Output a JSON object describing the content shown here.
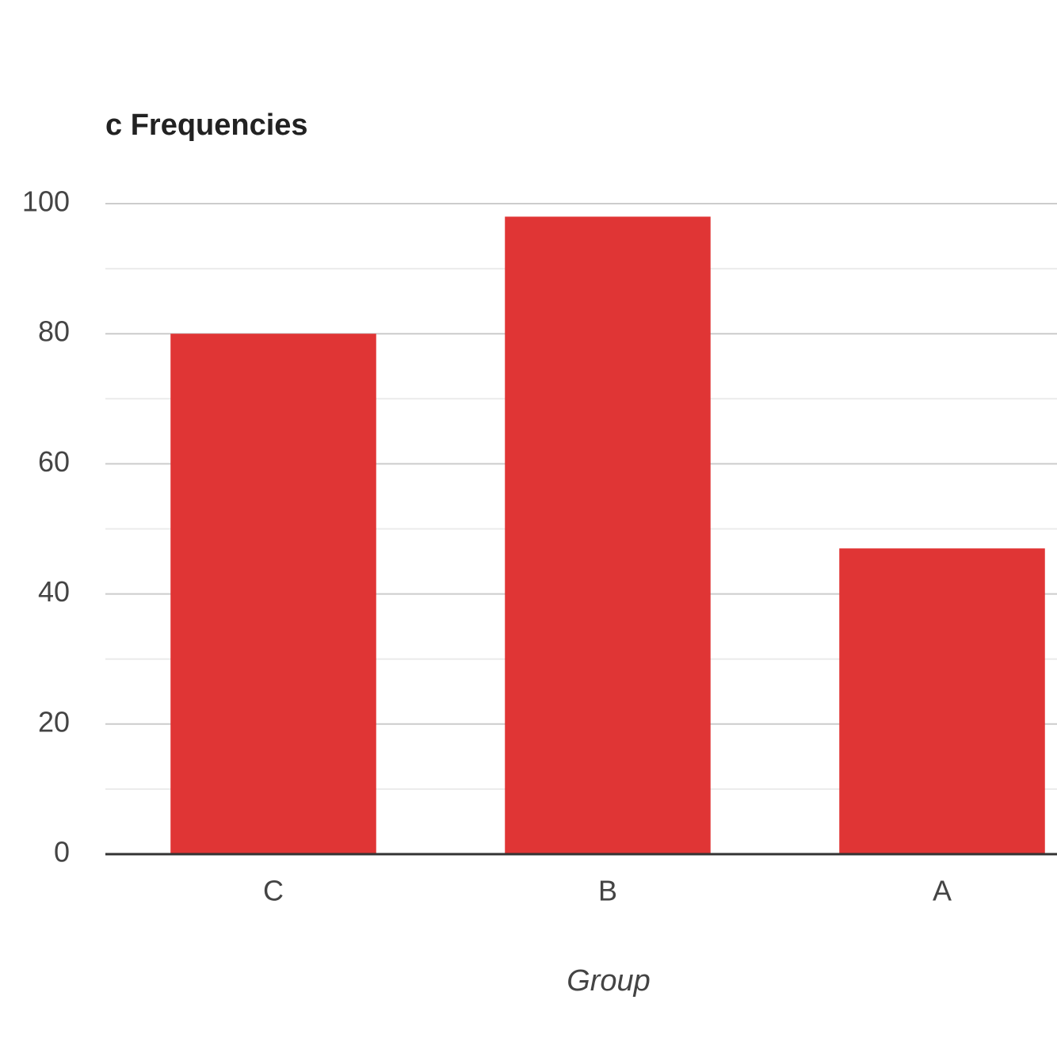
{
  "chart_data": {
    "type": "bar",
    "title": "c Frequencies",
    "x_label": "Group",
    "categories": [
      "C",
      "B",
      "A"
    ],
    "values": [
      80,
      98,
      47
    ],
    "color": "#e03535",
    "ylim": [
      0,
      100
    ],
    "yticks": [
      0,
      20,
      40,
      60,
      80,
      100
    ],
    "minor_yticks": [
      10,
      30,
      50,
      70,
      90
    ],
    "grid": true
  }
}
